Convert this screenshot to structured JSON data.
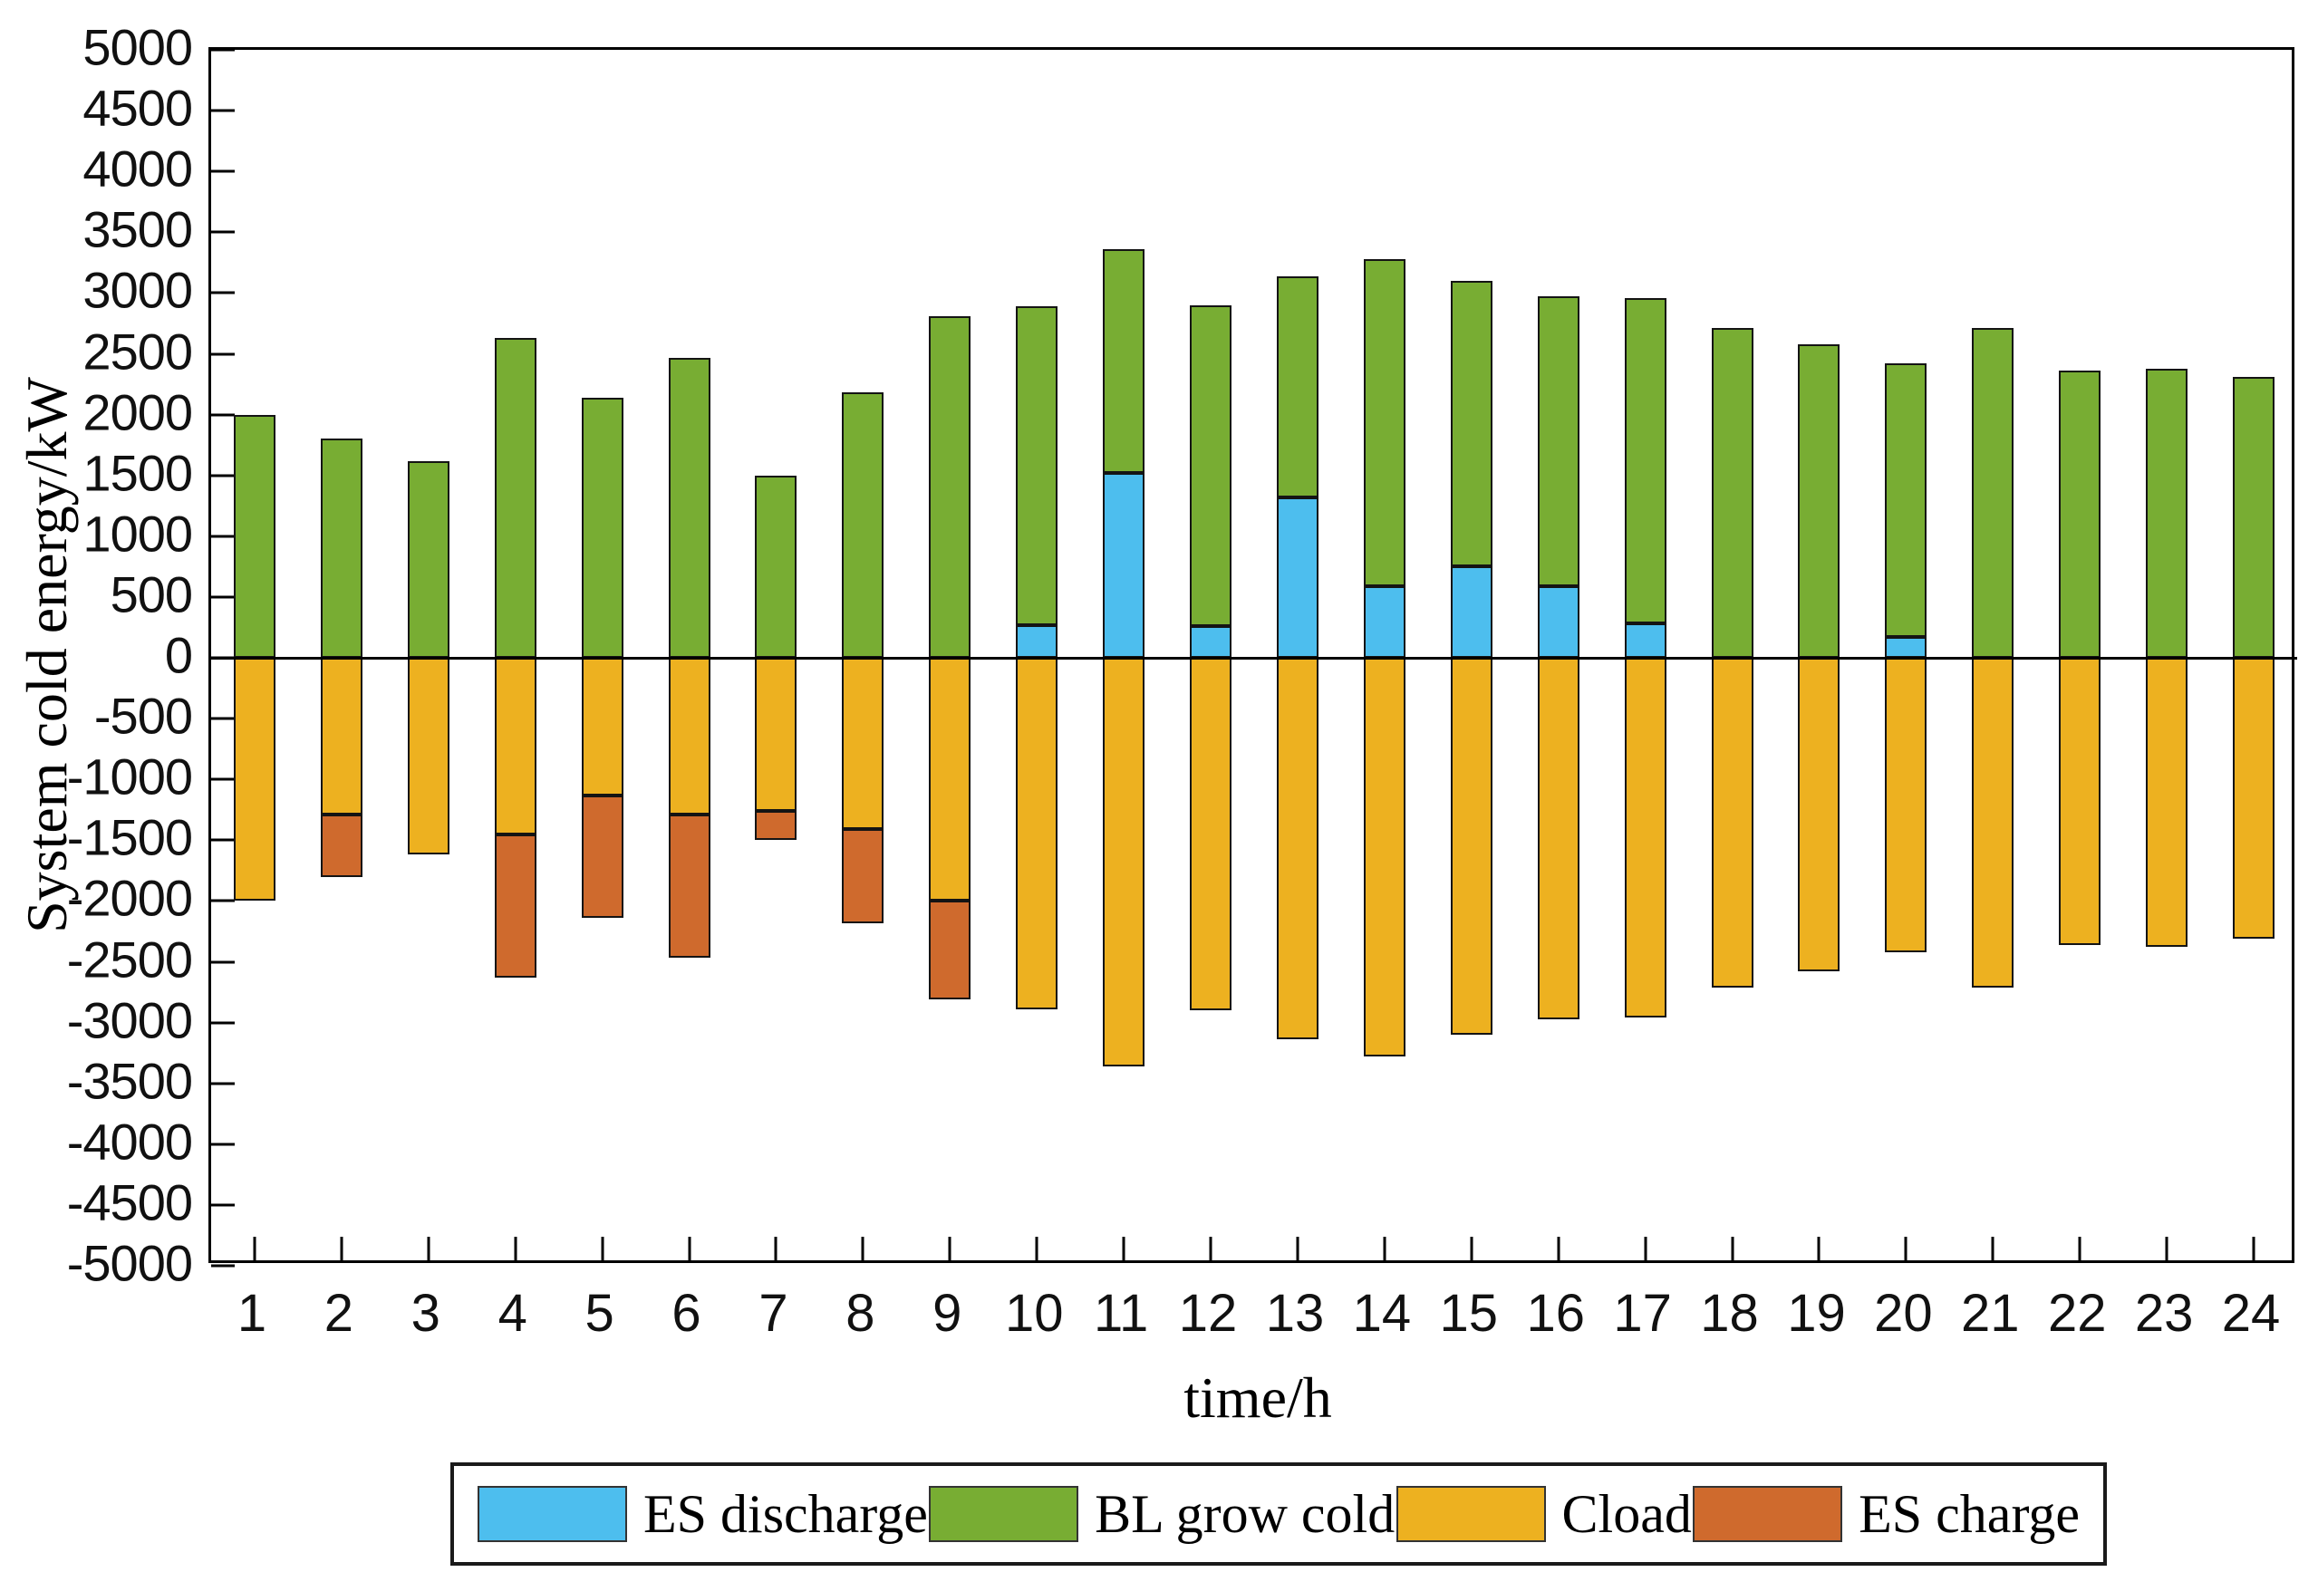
{
  "figure": {
    "ylabel": "System cold energy/kW",
    "xlabel": "time/h"
  },
  "chart_data": {
    "type": "bar",
    "stacked": true,
    "diverging": true,
    "title": "",
    "xlabel": "time/h",
    "ylabel": "System cold energy/kW",
    "x": [
      1,
      2,
      3,
      4,
      5,
      6,
      7,
      8,
      9,
      10,
      11,
      12,
      13,
      14,
      15,
      16,
      17,
      18,
      19,
      20,
      21,
      22,
      23,
      24
    ],
    "ylim": [
      -5000,
      5000
    ],
    "ytick_step": 500,
    "grid": false,
    "legend_position": "bottom",
    "bar_edge_color": "#141414",
    "series": [
      {
        "name": "ES discharge",
        "color": "#4DBEEE",
        "values": [
          0,
          0,
          0,
          0,
          0,
          0,
          0,
          0,
          0,
          270,
          1520,
          260,
          1320,
          590,
          750,
          590,
          280,
          0,
          0,
          170,
          0,
          0,
          0,
          0
        ]
      },
      {
        "name": "BL grow cold",
        "color": "#78AD33",
        "values": [
          2000,
          1800,
          1620,
          2630,
          2140,
          2470,
          1500,
          2180,
          2810,
          2620,
          1840,
          2640,
          1820,
          2690,
          2350,
          2380,
          2680,
          2710,
          2580,
          2250,
          2710,
          2360,
          2380,
          2310
        ]
      },
      {
        "name": "Cload",
        "color": "#EDB120",
        "values": [
          -2000,
          -1290,
          -1620,
          -1450,
          -1130,
          -1290,
          -1260,
          -1410,
          -2000,
          -2890,
          -3360,
          -2900,
          -3140,
          -3280,
          -3100,
          -2970,
          -2960,
          -2710,
          -2580,
          -2420,
          -2710,
          -2360,
          -2380,
          -2310
        ]
      },
      {
        "name": "ES charge",
        "color": "#CF6A2D",
        "values": [
          0,
          -510,
          0,
          -1180,
          -1010,
          -1180,
          -240,
          -770,
          -810,
          0,
          0,
          0,
          0,
          0,
          0,
          0,
          0,
          0,
          0,
          0,
          0,
          0,
          0,
          0
        ]
      }
    ]
  },
  "legend": {
    "items": [
      {
        "label": "ES discharge",
        "color": "#4DBEEE"
      },
      {
        "label": "BL grow cold",
        "color": "#78AD33"
      },
      {
        "label": "Cload",
        "color": "#EDB120"
      },
      {
        "label": "ES charge",
        "color": "#CF6A2D"
      }
    ]
  }
}
